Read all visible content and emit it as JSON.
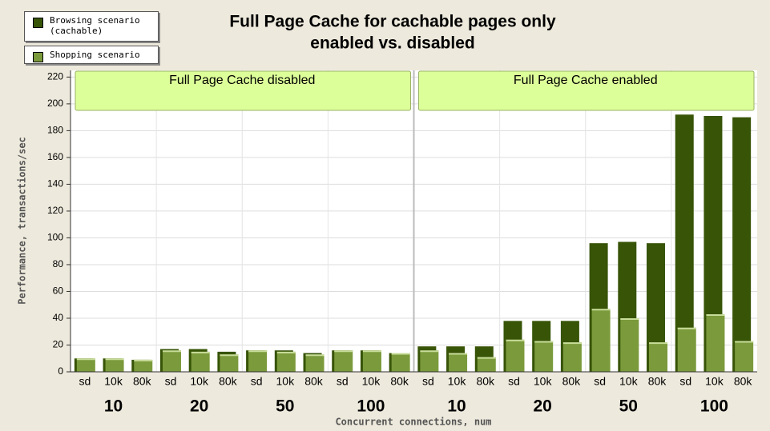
{
  "chart_data": {
    "type": "bar",
    "title": "Full Page Cache for cachable pages only",
    "subtitle": "enabled vs. disabled",
    "sections": [
      "Full Page Cache disabled",
      "Full Page Cache enabled"
    ],
    "groups": [
      "10",
      "20",
      "50",
      "100",
      "10",
      "20",
      "50",
      "100"
    ],
    "categories": [
      "sd",
      "10k",
      "80k",
      "sd",
      "10k",
      "80k",
      "sd",
      "10k",
      "80k",
      "sd",
      "10k",
      "80k",
      "sd",
      "10k",
      "80k",
      "sd",
      "10k",
      "80k",
      "sd",
      "10k",
      "80k",
      "sd",
      "10k",
      "80k"
    ],
    "series": [
      {
        "name": "Browsing scenario (cachable)",
        "color": "#375407",
        "values": [
          10,
          10,
          9,
          17,
          17,
          15,
          16,
          16,
          14,
          16,
          16,
          14,
          19,
          19,
          19,
          38,
          38,
          38,
          96,
          97,
          96,
          192,
          191,
          190
        ]
      },
      {
        "name": "Shopping scenario",
        "color": "#7b9a3c",
        "values": [
          10,
          10,
          9,
          16,
          15,
          13,
          16,
          15,
          13,
          16,
          16,
          14,
          16,
          14,
          11,
          24,
          23,
          22,
          47,
          40,
          22,
          33,
          43,
          23
        ]
      }
    ],
    "x_label": "Concurrent connections, num",
    "y_label": "Performance, transactions/sec",
    "ylim": [
      0,
      225
    ],
    "yticks": [
      0,
      20,
      40,
      60,
      80,
      100,
      120,
      140,
      160,
      180,
      200,
      220
    ],
    "grid": true
  }
}
